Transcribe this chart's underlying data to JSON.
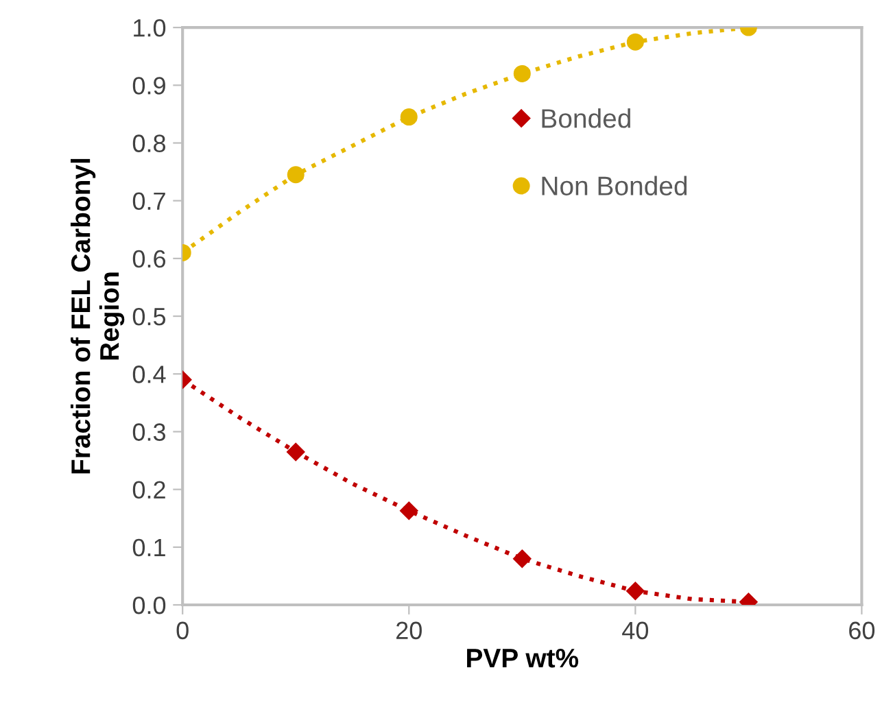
{
  "chart_data": {
    "type": "scatter",
    "xlabel": "PVP wt%",
    "ylabel": "Fraction of FEL Carbonyl\nRegion",
    "x": [
      0,
      10,
      20,
      30,
      40,
      50
    ],
    "series": [
      {
        "name": "Bonded",
        "color": "#c00000",
        "marker": "diamond",
        "values": [
          0.39,
          0.265,
          0.163,
          0.08,
          0.024,
          0.005
        ]
      },
      {
        "name": "Non Bonded",
        "color": "#e6b800",
        "marker": "circle",
        "values": [
          0.61,
          0.745,
          0.845,
          0.92,
          0.975,
          1.0
        ],
        "errors": [
          0.006,
          0.006,
          0.006,
          0.006,
          0.006,
          0.006
        ]
      },
      {
        "type": "line",
        "color": "#c00000",
        "line_style": "dotted",
        "marker": "none",
        "x": [
          0,
          5,
          10,
          15,
          20,
          25,
          30,
          35,
          40,
          45,
          50
        ],
        "values": [
          0.39,
          0.325,
          0.265,
          0.21,
          0.163,
          0.12,
          0.08,
          0.05,
          0.024,
          0.01,
          0.005
        ]
      },
      {
        "type": "line",
        "color": "#e6b800",
        "line_style": "dotted",
        "marker": "none",
        "x": [
          0,
          5,
          10,
          15,
          20,
          25,
          30,
          35,
          40,
          45,
          50
        ],
        "values": [
          0.61,
          0.68,
          0.745,
          0.795,
          0.845,
          0.885,
          0.92,
          0.95,
          0.975,
          0.99,
          1.0
        ]
      }
    ],
    "xlim": [
      0,
      60
    ],
    "xticks": [
      0,
      20,
      40,
      60
    ],
    "ylim": [
      0,
      1.0
    ],
    "yticks": [
      {
        "value": 0,
        "label": "0.0"
      },
      {
        "value": 0.1,
        "label": "0.1"
      },
      {
        "value": 0.2,
        "label": "0.2"
      },
      {
        "value": 0.3,
        "label": "0.3"
      },
      {
        "value": 0.4,
        "label": "0.4"
      },
      {
        "value": 0.5,
        "label": "0.5"
      },
      {
        "value": 0.6,
        "label": "0.6"
      },
      {
        "value": 0.7,
        "label": "0.7"
      },
      {
        "value": 0.8,
        "label": "0.8"
      },
      {
        "value": 0.9,
        "label": "0.9"
      },
      {
        "value": 1.0,
        "label": "1.0"
      }
    ],
    "grid": false,
    "legend": "right"
  }
}
